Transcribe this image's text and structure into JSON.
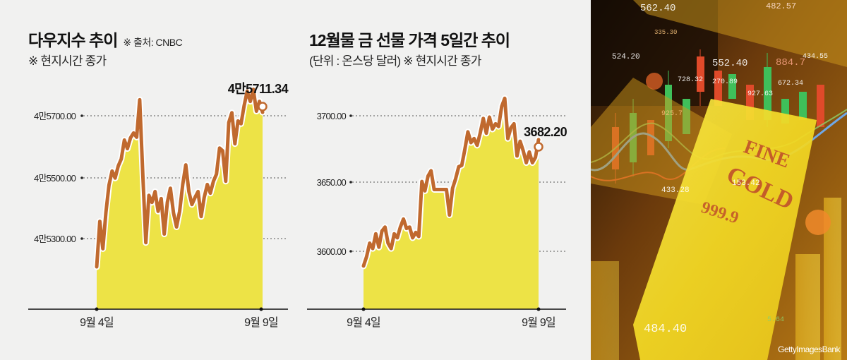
{
  "dow_chart": {
    "title": "다우지수 추이",
    "source_note": "※ 출처: CNBC",
    "note": "※ 현지시간 종가",
    "y_ticks": [
      "4만5700.00",
      "4만5500.00",
      "4만5300.00"
    ],
    "x_ticks": [
      "9월 4일",
      "9월 9일"
    ],
    "last_value_label": "4만5711.34"
  },
  "gold_chart": {
    "title": "12월물 금 선물 가격 5일간 추이",
    "note": "(단위 : 온스당 달러) ※ 현지시간 종가",
    "y_ticks": [
      "3700.00",
      "3650.00",
      "3600.00"
    ],
    "x_ticks": [
      "9월 4일",
      "9월 9일"
    ],
    "last_value_label": "3682.20"
  },
  "photo": {
    "credit": "GettyImagesBank",
    "overlay_numbers": [
      "562.40",
      "482.57",
      "335.30",
      "524.20",
      "552.40",
      "884.7",
      "434.55",
      "728.32",
      "270.89",
      "927.63",
      "672.34",
      "925.7",
      "433.28",
      "153.42",
      "484.40",
      "5.64"
    ],
    "bar_text": [
      "FINE",
      "GOLD",
      "999.9"
    ]
  },
  "colors": {
    "line": "#c0692e",
    "area": "#ede346",
    "background": "#f1f1f0",
    "outline": "#ffffff"
  },
  "chart_data": [
    {
      "type": "area",
      "title": "다우지수 추이",
      "subtitle": "※ 출처: CNBC / ※ 현지시간 종가",
      "xlabel": "",
      "ylabel": "",
      "x_range": [
        "9월 4일",
        "9월 9일"
      ],
      "yticks": [
        45300,
        45500,
        45700
      ],
      "ylim": [
        44980,
        45760
      ],
      "grid": "dotted horizontal",
      "annotation": {
        "label": "4만5711.34",
        "value": 45711.34,
        "position": "last point"
      },
      "series": [
        {
          "name": "다우지수",
          "values": [
            45208,
            45356,
            45267,
            45386,
            45474,
            45520,
            45497,
            45536,
            45559,
            45621,
            45593,
            45628,
            45644,
            45630,
            45752,
            45510,
            45287,
            45441,
            45418,
            45453,
            45389,
            45430,
            45315,
            45418,
            45464,
            45384,
            45338,
            45389,
            45476,
            45540,
            45453,
            45411,
            45434,
            45453,
            45372,
            45434,
            45476,
            45448,
            45487,
            45510,
            45595,
            45586,
            45487,
            45678,
            45710,
            45609,
            45683,
            45674,
            45733,
            45780,
            45747,
            45786,
            45715,
            45747,
            45711.34
          ]
        }
      ]
    },
    {
      "type": "area",
      "title": "12월물 금 선물 가격 5일간 추이",
      "subtitle": "(단위 : 온스당 달러) ※ 현지시간 종가",
      "xlabel": "",
      "ylabel": "온스당 달러",
      "x_range": [
        "9월 4일",
        "9월 9일"
      ],
      "yticks": [
        3600,
        3650,
        3700
      ],
      "ylim": [
        3560,
        3715
      ],
      "grid": "dotted horizontal",
      "annotation": {
        "label": "3682.20",
        "value": 3682.2,
        "position": "last point"
      },
      "series": [
        {
          "name": "12월물 금 선물",
          "values": [
            3588,
            3595,
            3605,
            3601,
            3612,
            3602,
            3614,
            3617,
            3605,
            3601,
            3612,
            3609,
            3617,
            3623,
            3616,
            3617,
            3609,
            3613,
            3610,
            3651,
            3644,
            3655,
            3659,
            3645,
            3645,
            3645,
            3645,
            3645,
            3626,
            3646,
            3653,
            3662,
            3663,
            3675,
            3688,
            3680,
            3683,
            3678,
            3687,
            3698,
            3687,
            3699,
            3690,
            3694,
            3692,
            3707,
            3713,
            3683,
            3691,
            3694,
            3670,
            3681,
            3674,
            3665,
            3673,
            3665,
            3669,
            3682.2
          ]
        }
      ]
    }
  ]
}
